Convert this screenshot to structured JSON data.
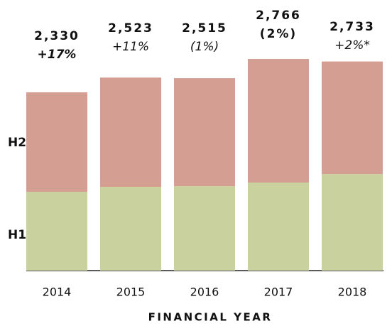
{
  "chart_data": {
    "type": "stacked_bar",
    "x_label": "FINANCIAL YEAR",
    "categories": [
      "2014",
      "2015",
      "2016",
      "2017",
      "2018"
    ],
    "series": [
      {
        "name": "H1",
        "color": "#c9d29e",
        "values": [
          1030,
          1095,
          1104,
          1151,
          1262
        ]
      },
      {
        "name": "H2",
        "color": "#d49e92",
        "values": [
          1300,
          1428,
          1411,
          1615,
          1471
        ]
      }
    ],
    "totals": [
      2330,
      2523,
      2515,
      2766,
      2733
    ],
    "totals_labels": [
      "2,330",
      "2,523",
      "2,515",
      "2,766",
      "2,733"
    ],
    "changes": [
      "+17%",
      "+11%",
      "(1%)",
      "(2%)",
      "+2%*"
    ]
  }
}
